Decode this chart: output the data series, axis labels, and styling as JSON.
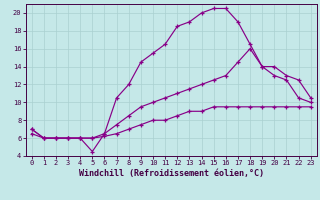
{
  "xlabel": "Windchill (Refroidissement éolien,°C)",
  "bg_color": "#c5e8e8",
  "line_color": "#880088",
  "xlim": [
    -0.5,
    23.5
  ],
  "ylim": [
    4,
    21
  ],
  "xticks": [
    0,
    1,
    2,
    3,
    4,
    5,
    6,
    7,
    8,
    9,
    10,
    11,
    12,
    13,
    14,
    15,
    16,
    17,
    18,
    19,
    20,
    21,
    22,
    23
  ],
  "yticks": [
    4,
    6,
    8,
    10,
    12,
    14,
    16,
    18,
    20
  ],
  "line1_x": [
    0,
    1,
    2,
    3,
    4,
    5,
    6,
    7,
    8,
    9,
    10,
    11,
    12,
    13,
    14,
    15,
    16,
    17,
    18,
    19,
    20,
    21,
    22,
    23
  ],
  "line1_y": [
    7.0,
    6.0,
    6.0,
    6.0,
    6.0,
    4.5,
    6.5,
    10.5,
    12.0,
    14.5,
    15.5,
    16.5,
    18.5,
    19.0,
    20.0,
    20.5,
    20.5,
    19.0,
    16.5,
    14.0,
    13.0,
    12.5,
    10.5,
    10.0
  ],
  "line2_x": [
    0,
    1,
    2,
    3,
    4,
    5,
    6,
    7,
    8,
    9,
    10,
    11,
    12,
    13,
    14,
    15,
    16,
    17,
    18,
    19,
    20,
    21,
    22,
    23
  ],
  "line2_y": [
    7.0,
    6.0,
    6.0,
    6.0,
    6.0,
    6.0,
    6.5,
    7.5,
    8.5,
    9.5,
    10.0,
    10.5,
    11.0,
    11.5,
    12.0,
    12.5,
    13.0,
    14.5,
    16.0,
    14.0,
    14.0,
    13.0,
    12.5,
    10.5
  ],
  "line3_x": [
    0,
    1,
    2,
    3,
    4,
    5,
    6,
    7,
    8,
    9,
    10,
    11,
    12,
    13,
    14,
    15,
    16,
    17,
    18,
    19,
    20,
    21,
    22,
    23
  ],
  "line3_y": [
    6.5,
    6.0,
    6.0,
    6.0,
    6.0,
    6.0,
    6.2,
    6.5,
    7.0,
    7.5,
    8.0,
    8.0,
    8.5,
    9.0,
    9.0,
    9.5,
    9.5,
    9.5,
    9.5,
    9.5,
    9.5,
    9.5,
    9.5,
    9.5
  ],
  "grid_color": "#aad0d0",
  "tick_fontsize": 5.0,
  "xlabel_fontsize": 6.0
}
